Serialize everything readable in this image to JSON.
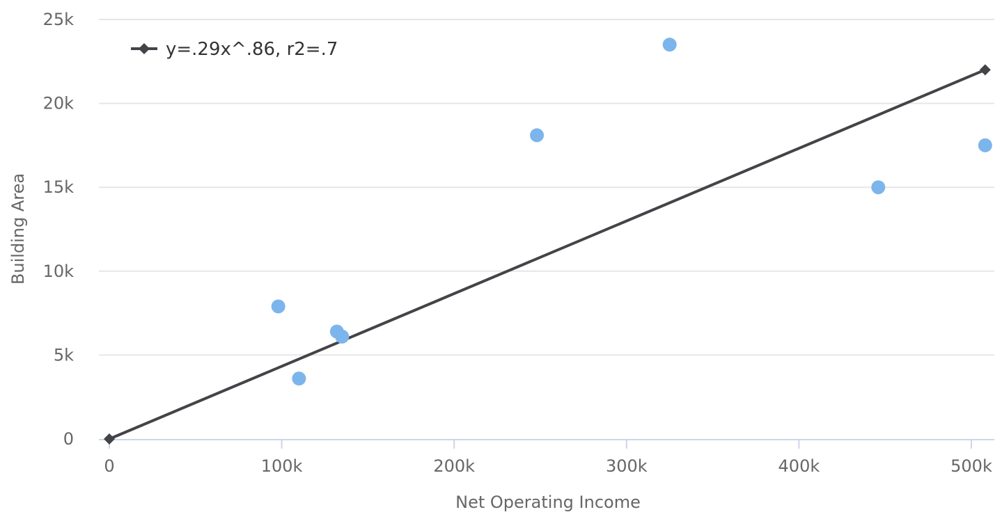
{
  "chart_data": {
    "type": "scatter",
    "xlabel": "Net Operating Income",
    "ylabel": "Building Area",
    "xlim": [
      0,
      510000
    ],
    "ylim": [
      0,
      25000
    ],
    "x_ticks": [
      0,
      100000,
      200000,
      300000,
      400000,
      500000
    ],
    "x_tick_labels": [
      "0",
      "100k",
      "200k",
      "300k",
      "400k",
      "500k"
    ],
    "y_ticks": [
      0,
      5000,
      10000,
      15000,
      20000,
      25000
    ],
    "y_tick_labels": [
      "0",
      "5k",
      "10k",
      "15k",
      "20k",
      "25k"
    ],
    "grid": "horizontal",
    "legend_position": "top-left",
    "series": [
      {
        "kind": "scatter",
        "color": "#7cb5ec",
        "points": [
          {
            "x": 98000,
            "y": 7900
          },
          {
            "x": 110000,
            "y": 3600
          },
          {
            "x": 132000,
            "y": 6400
          },
          {
            "x": 135000,
            "y": 6100
          },
          {
            "x": 248000,
            "y": 18100
          },
          {
            "x": 325000,
            "y": 23500
          },
          {
            "x": 446000,
            "y": 15000
          },
          {
            "x": 508000,
            "y": 17500
          }
        ]
      },
      {
        "kind": "line",
        "name": "y=.29x^.86, r2=.7",
        "color": "#434348",
        "points": [
          {
            "x": 0,
            "y": 0
          },
          {
            "x": 508000,
            "y": 22000
          }
        ]
      }
    ]
  }
}
